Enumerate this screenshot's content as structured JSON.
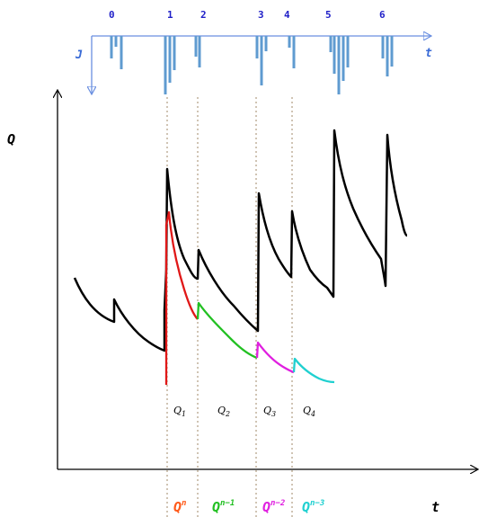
{
  "top_axis": {
    "y_label": "J",
    "x_label": "t",
    "tick_labels": [
      "0",
      "1",
      "2",
      "3",
      "4",
      "5",
      "6"
    ]
  },
  "main_axis": {
    "y_label": "Q",
    "x_label": "t"
  },
  "segment_labels": [
    {
      "main": "Q",
      "sub": "1"
    },
    {
      "main": "Q",
      "sub": "2"
    },
    {
      "main": "Q",
      "sub": "3"
    },
    {
      "main": "Q",
      "sub": "4"
    }
  ],
  "bottom_labels": [
    {
      "main": "Q",
      "sup": "n",
      "color": "#ff5a1a"
    },
    {
      "main": "Q",
      "sup": "n−1",
      "color": "#22c022"
    },
    {
      "main": "Q",
      "sup": "n−2",
      "color": "#e020e0"
    },
    {
      "main": "Q",
      "sup": "n−3",
      "color": "#20d0d0"
    }
  ],
  "colors": {
    "axis": "#000000",
    "top_axis": "#6a8fe0",
    "spikes": "#5f9bd0",
    "guides": "#a08a6a",
    "qn": "#e01818",
    "qn1": "#22c022",
    "qn2": "#e020e0",
    "qn3": "#20d0d0",
    "black_curve": "#000000"
  }
}
